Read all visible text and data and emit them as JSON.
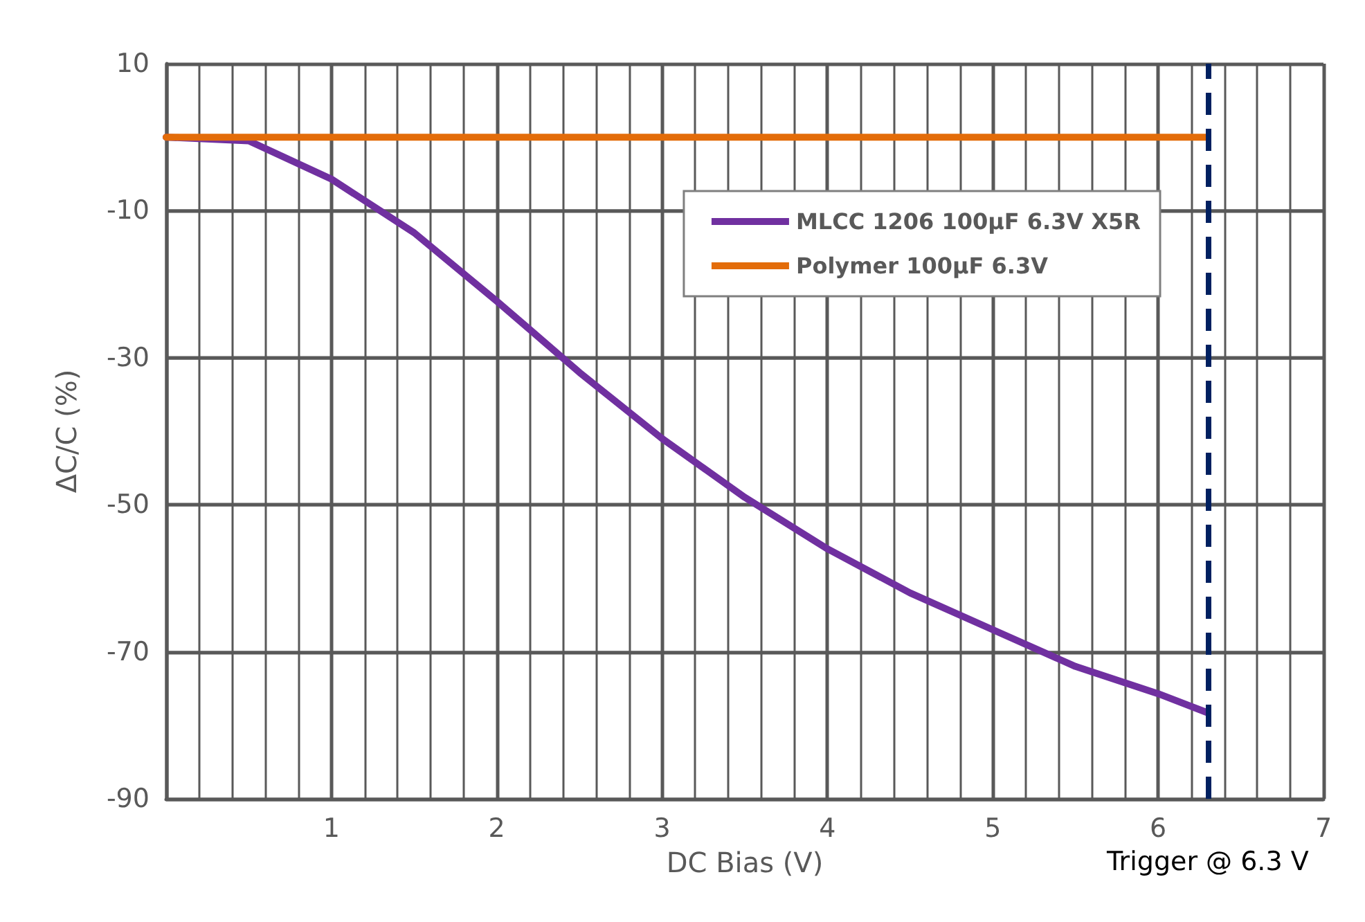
{
  "chart_data": {
    "type": "line",
    "xlabel": "DC Bias (V)",
    "ylabel": "ΔC/C (%)",
    "series": [
      {
        "name": "MLCC 1206 100µF 6.3V X5R",
        "color": "#7030a0",
        "x": [
          0,
          0.5,
          1,
          1.5,
          2,
          2.5,
          3,
          3.5,
          4,
          4.5,
          5,
          5.5,
          6,
          6.3
        ],
        "values": [
          0,
          -0.5,
          -5.7,
          -13,
          -22.3,
          -32,
          -41,
          -49,
          -56,
          -62,
          -67,
          -72,
          -75.7,
          -78.3
        ]
      },
      {
        "name": "Polymer 100µF 6.3V",
        "color": "#e36c09",
        "x": [
          0,
          6.3
        ],
        "values": [
          0,
          0
        ]
      }
    ],
    "xlim": [
      0,
      7
    ],
    "xticks": [
      {
        "value": 0,
        "label": null
      },
      1,
      2,
      3,
      4,
      5,
      6,
      7
    ],
    "ylim": [
      -90,
      10
    ],
    "yticks": [
      -90,
      -70,
      -50,
      -30,
      -10,
      10
    ],
    "ref_lines": [
      {
        "axis": "x",
        "value": 6.3,
        "label": "Trigger @ 6.3 V",
        "color": "#002060",
        "line_style": "dashed"
      }
    ],
    "grid": true,
    "legend": "top right",
    "marker": "none",
    "line_style": "solid"
  }
}
